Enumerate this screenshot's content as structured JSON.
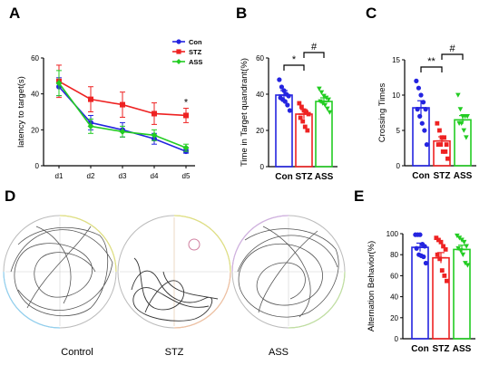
{
  "colors": {
    "con": "#2424e0",
    "stz": "#ee2222",
    "ass": "#22cc22",
    "axis": "#000000"
  },
  "panels": {
    "A": "A",
    "B": "B",
    "C": "C",
    "D": "D",
    "E": "E"
  },
  "chart_data": [
    {
      "panel": "A",
      "type": "line",
      "ylabel": "latency to target(s)",
      "xlabel": "",
      "categories": [
        "d1",
        "d2",
        "d3",
        "d4",
        "d5"
      ],
      "ylim": [
        0,
        60
      ],
      "yticks": [
        0,
        20,
        40,
        60
      ],
      "legend": "top-right",
      "series": [
        {
          "name": "Con",
          "color": "#2424e0",
          "marker": "circle",
          "values": [
            44,
            24,
            20,
            15,
            8
          ],
          "errors": [
            5,
            4,
            4,
            3,
            1
          ]
        },
        {
          "name": "STZ",
          "color": "#ee2222",
          "marker": "square",
          "values": [
            47,
            37,
            34,
            29,
            28
          ],
          "errors": [
            9,
            7,
            7,
            6,
            4
          ]
        },
        {
          "name": "ASS",
          "color": "#22cc22",
          "marker": "diamond",
          "values": [
            46,
            22,
            19,
            17,
            10
          ],
          "errors": [
            7,
            4,
            3,
            3,
            2
          ]
        }
      ],
      "annotations": [
        {
          "text": "*",
          "category": "d5"
        }
      ]
    },
    {
      "panel": "B",
      "type": "bar",
      "ylabel": "Time in Target quandrant(%)",
      "categories": [
        "Con",
        "STZ",
        "ASS"
      ],
      "values": [
        39.5,
        29,
        36
      ],
      "errors": [
        2.5,
        2.5,
        2
      ],
      "ylim": [
        0,
        60
      ],
      "yticks": [
        0,
        20,
        40,
        60
      ],
      "points": [
        [
          48,
          44,
          42,
          40,
          39,
          38,
          37,
          36,
          34,
          31
        ],
        [
          35,
          33,
          31,
          30,
          29,
          27,
          25,
          22,
          20
        ],
        [
          43,
          41,
          39,
          38,
          37,
          36,
          35,
          34,
          32,
          30
        ]
      ],
      "significance": [
        {
          "from": "Con",
          "to": "STZ",
          "text": "*"
        },
        {
          "from": "STZ",
          "to": "ASS",
          "text": "#"
        }
      ]
    },
    {
      "panel": "C",
      "type": "bar",
      "ylabel": "Crossing Times",
      "categories": [
        "Con",
        "STZ",
        "ASS"
      ],
      "values": [
        8.2,
        3.5,
        6.5
      ],
      "errors": [
        1.0,
        0.6,
        0.6
      ],
      "ylim": [
        0,
        15
      ],
      "yticks": [
        0,
        5,
        10,
        15
      ],
      "points": [
        [
          12,
          11,
          10,
          9,
          8,
          8,
          7,
          6,
          5,
          3
        ],
        [
          6,
          5,
          4,
          4,
          3,
          3,
          3,
          2,
          2,
          1
        ],
        [
          10,
          8,
          7,
          7,
          7,
          6,
          6,
          5,
          4
        ]
      ],
      "significance": [
        {
          "from": "Con",
          "to": "STZ",
          "text": "**"
        },
        {
          "from": "STZ",
          "to": "ASS",
          "text": "#"
        }
      ]
    },
    {
      "panel": "E",
      "type": "bar",
      "ylabel": "Alternation Behavior(%)",
      "categories": [
        "Con",
        "STZ",
        "ASS"
      ],
      "values": [
        87,
        77,
        85
      ],
      "errors": [
        4,
        5,
        4
      ],
      "ylim": [
        0,
        100
      ],
      "yticks": [
        0,
        20,
        40,
        60,
        80,
        100
      ],
      "points": [
        [
          99,
          99,
          99,
          90,
          88,
          86,
          80,
          79,
          78,
          72
        ],
        [
          96,
          94,
          92,
          88,
          85,
          80,
          76,
          65,
          60,
          55
        ],
        [
          98,
          96,
          94,
          92,
          88,
          86,
          84,
          80,
          72,
          70
        ]
      ],
      "significance": []
    }
  ],
  "maze": {
    "labels": [
      "Control",
      "STZ",
      "ASS"
    ]
  }
}
